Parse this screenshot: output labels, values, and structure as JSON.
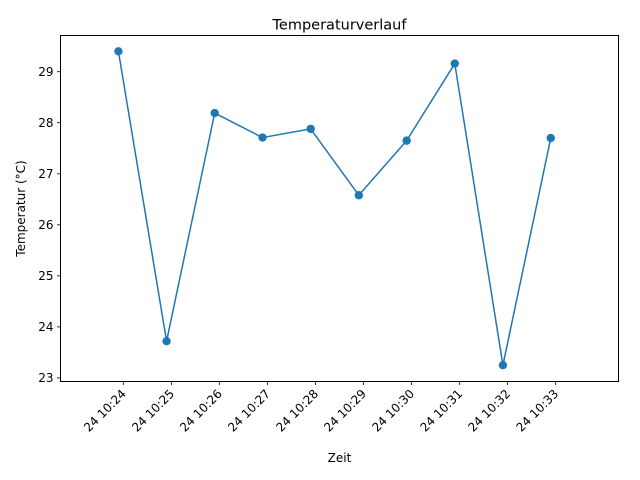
{
  "chart_data": {
    "type": "line",
    "title": "Temperaturverlauf",
    "xlabel": "Zeit",
    "ylabel": "Temperatur (°C)",
    "x_tick_labels": [
      "24 10:24",
      "24 10:25",
      "24 10:26",
      "24 10:27",
      "24 10:28",
      "24 10:29",
      "24 10:30",
      "24 10:31",
      "24 10:32",
      "24 10:33"
    ],
    "y_ticks": [
      23,
      24,
      25,
      26,
      27,
      28,
      29
    ],
    "x_tick_positions": [
      10.4,
      10.4167,
      10.4333,
      10.45,
      10.4667,
      10.4833,
      10.5,
      10.5167,
      10.5333,
      10.55
    ],
    "xlim": [
      10.3782,
      10.5718
    ],
    "ylim": [
      22.93,
      29.71
    ],
    "grid": false,
    "legend": "none",
    "color": "#1f77b4",
    "series": [
      {
        "x": [
          10.3983,
          10.415,
          10.4317,
          10.4483,
          10.465,
          10.4817,
          10.4983,
          10.515,
          10.5317,
          10.5483
        ],
        "values": [
          29.4,
          23.72,
          28.19,
          27.71,
          27.88,
          26.58,
          27.65,
          29.16,
          23.25,
          27.7
        ]
      }
    ]
  }
}
